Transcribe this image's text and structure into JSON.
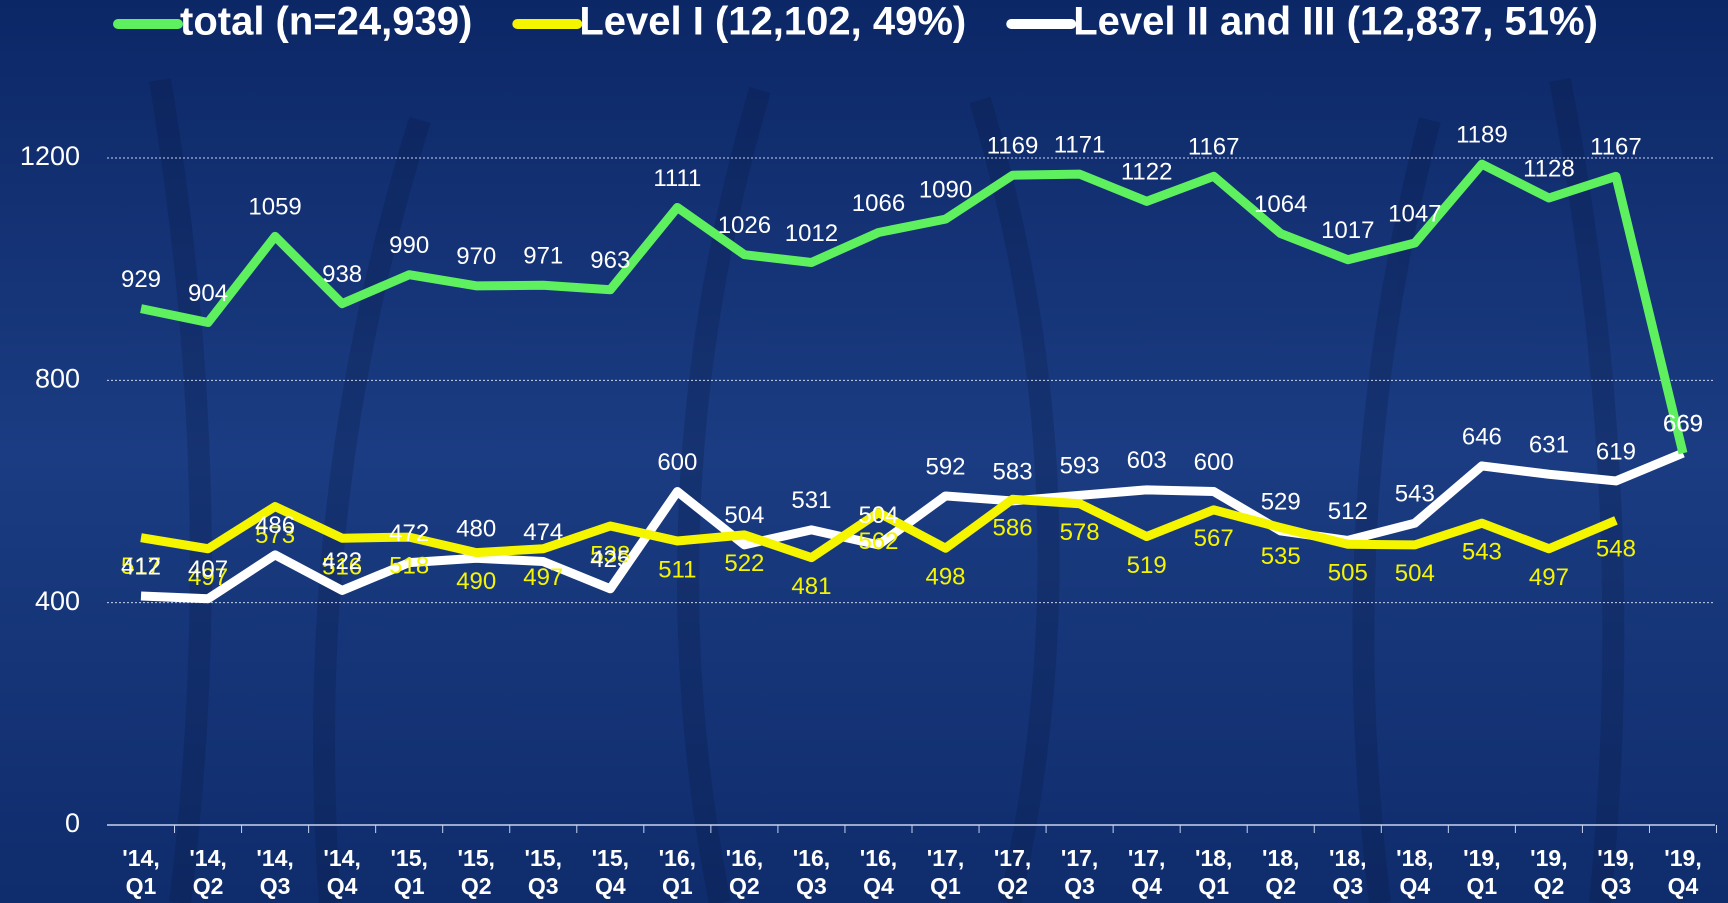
{
  "chart_data": {
    "type": "line",
    "categories": [
      [
        "'14,",
        "Q1"
      ],
      [
        "'14,",
        "Q2"
      ],
      [
        "'14,",
        "Q3"
      ],
      [
        "'14,",
        "Q4"
      ],
      [
        "'15,",
        "Q1"
      ],
      [
        "'15,",
        "Q2"
      ],
      [
        "'15,",
        "Q3"
      ],
      [
        "'15,",
        "Q4"
      ],
      [
        "'16,",
        "Q1"
      ],
      [
        "'16,",
        "Q2"
      ],
      [
        "'16,",
        "Q3"
      ],
      [
        "'16,",
        "Q4"
      ],
      [
        "'17,",
        "Q1"
      ],
      [
        "'17,",
        "Q2"
      ],
      [
        "'17,",
        "Q3"
      ],
      [
        "'17,",
        "Q4"
      ],
      [
        "'18,",
        "Q1"
      ],
      [
        "'18,",
        "Q2"
      ],
      [
        "'18,",
        "Q3"
      ],
      [
        "'18,",
        "Q4"
      ],
      [
        "'19,",
        "Q1"
      ],
      [
        "'19,",
        "Q2"
      ],
      [
        "'19,",
        "Q3"
      ],
      [
        "'19,",
        "Q4"
      ]
    ],
    "series": [
      {
        "name": "total (n=24,939)",
        "color": "#5ef05e",
        "values": [
          929,
          904,
          1059,
          938,
          990,
          970,
          971,
          963,
          1111,
          1026,
          1012,
          1066,
          1090,
          1169,
          1171,
          1122,
          1167,
          1064,
          1017,
          1047,
          1189,
          1128,
          1167,
          669
        ]
      },
      {
        "name": "Level I (12,102, 49%)",
        "color": "#f5f500",
        "values": [
          517,
          497,
          573,
          516,
          518,
          490,
          497,
          538,
          511,
          522,
          481,
          562,
          498,
          586,
          578,
          519,
          567,
          535,
          505,
          504,
          543,
          497,
          548,
          null
        ]
      },
      {
        "name": "Level II and III (12,837, 51%)",
        "color": "#ffffff",
        "values": [
          412,
          407,
          486,
          422,
          472,
          480,
          474,
          425,
          600,
          504,
          531,
          504,
          592,
          583,
          593,
          603,
          600,
          529,
          512,
          543,
          646,
          631,
          619,
          669
        ]
      }
    ],
    "ylim": [
      0,
      1200
    ],
    "yticks": [
      0,
      400,
      800,
      1200
    ],
    "grid": true
  }
}
